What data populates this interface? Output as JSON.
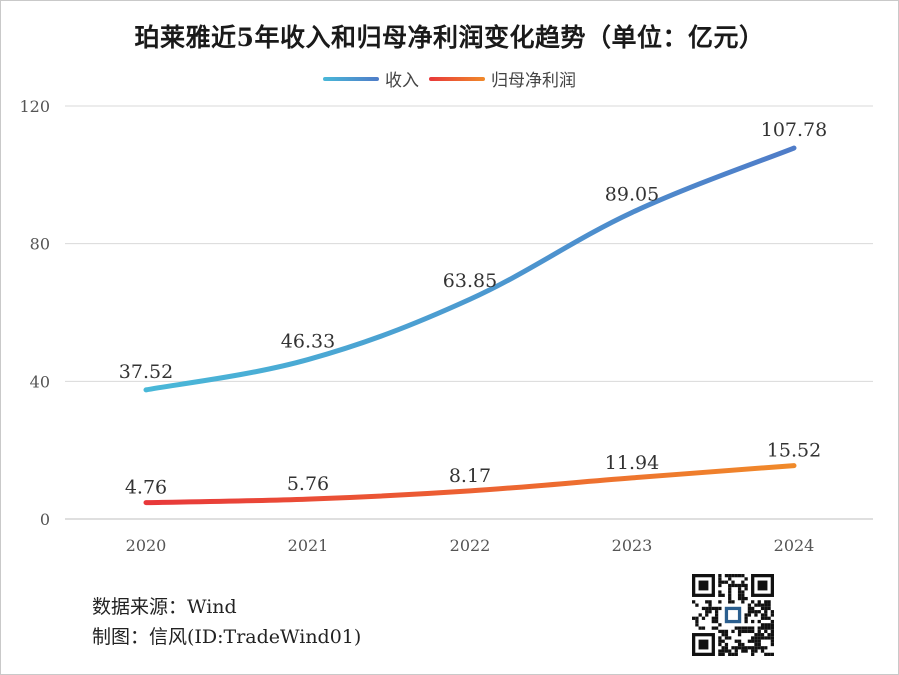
{
  "chart_data": {
    "type": "line",
    "title": "珀莱雅近5年收入和归母净利润变化趋势（单位：亿元）",
    "categories": [
      "2020",
      "2021",
      "2022",
      "2023",
      "2024"
    ],
    "series": [
      {
        "name": "收入",
        "values": [
          37.52,
          46.33,
          63.85,
          89.05,
          107.78
        ],
        "colors": [
          "#49b8d8",
          "#4f7cc8"
        ]
      },
      {
        "name": "归母净利润",
        "values": [
          4.76,
          5.76,
          8.17,
          11.94,
          15.52
        ],
        "colors": [
          "#e8383a",
          "#f08a2a"
        ]
      }
    ],
    "value_labels": [
      [
        "37.52",
        "46.33",
        "63.85",
        "89.05",
        "107.78"
      ],
      [
        "4.76",
        "5.76",
        "8.17",
        "11.94",
        "15.52"
      ]
    ],
    "ylim": [
      0,
      120
    ],
    "yticks": [
      0,
      40,
      80,
      120
    ],
    "ytick_labels": [
      "0",
      "40",
      "80",
      "120"
    ],
    "grid": true,
    "legend_position": "top-center"
  },
  "footer": {
    "source": "数据来源：Wind",
    "author": "制图：信风(ID:TradeWind01)"
  },
  "icons": {
    "qr": "qr-code-icon"
  }
}
